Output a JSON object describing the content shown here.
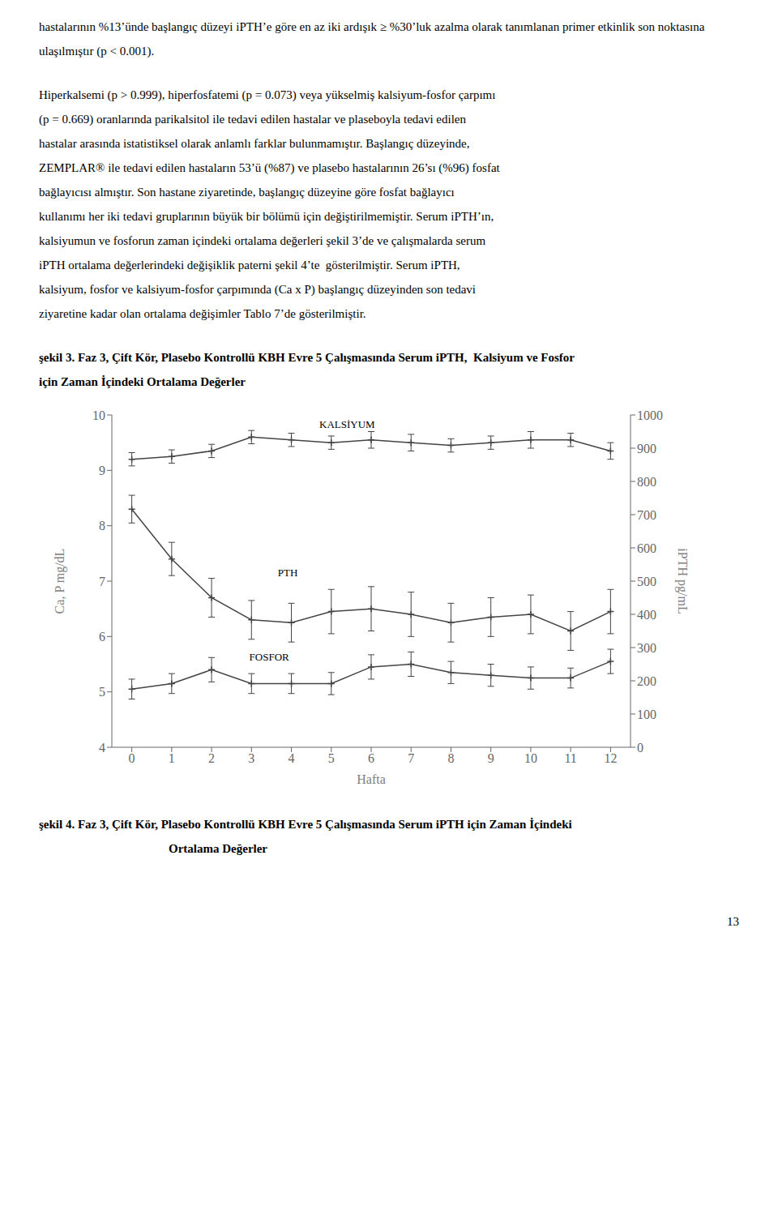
{
  "page_text": [
    "hastalarının %13’ünde başlangıç düzeyi iPTH’e göre en az iki ardışık ≥ %30’luk azalma olarak tanımlanan primer etkinlik son noktasına ulaşılmıştır (p < 0.001).",
    "Hiperkalsemi (p > 0.999), hiperfosfatemi (p = 0.073) veya yükselmiş kalsiyum-fosfor çarpımı",
    "(p = 0.669) oranlarında parikalsitol ile tedavi edilen hastalar ve plaseboyla tedavi edilen",
    "hastalar arasında istatistiksel olarak anlamlı farklar bulunmamıştır. Başlangıç düzeyinde,",
    "ZEMPLAR® ile tedavi edilen hastaların 53’ü (%87) ve plasebo hastalarının 26’sı (%96) fosfat",
    "bağlayıcısı almıştır. Son hastane ziyaretinde, başlangıç düzeyine göre fosfat bağlayıcı",
    "kullanımı her iki tedavi gruplarının büyük bir bölümü için değiştirilmemiştir. Serum iPTH’ın,",
    "kalsiyumun ve fosforun zaman içindeki ortalama değerleri şekil 3’de ve çalışmalarda serum",
    "iPTH ortalama değerlerindeki değişiklik paterni şekil 4’te  gösterilmiştir. Serum iPTH,",
    "kalsiyum, fosfor ve kalsiyum-fosfor çarpımında (Ca x P) başlangıç düzeyinden son tedavi",
    "ziyaretine kadar olan ortalama değişimler Tablo 7’de gösterilmiştir."
  ],
  "chart_data": {
    "type": "line",
    "title": [
      "şekil 3. Faz 3, Çift Kör, Plasebo Kontrollü KBH Evre 5 Çalışmasında Serum iPTH,  Kalsiyum ve Fosfor",
      "için Zaman İçindeki Ortalama Değerler"
    ],
    "x_label": "Hafta",
    "y_label": "Ca, P mg/dL",
    "y2_label": "iPTH pg/mL",
    "x": [
      0,
      1,
      2,
      3,
      4,
      5,
      6,
      7,
      8,
      9,
      10,
      11,
      12
    ],
    "xlim": [
      -0.5,
      12.5
    ],
    "xticks": [
      0,
      1,
      2,
      3,
      4,
      5,
      6,
      7,
      8,
      9,
      10,
      11,
      12
    ],
    "ylim": [
      4,
      10
    ],
    "yticks": [
      4,
      5,
      6,
      7,
      8,
      9,
      10
    ],
    "y2lim": [
      0,
      1000
    ],
    "y2ticks": [
      0,
      100,
      200,
      300,
      400,
      500,
      600,
      700,
      800,
      900,
      1000
    ],
    "grid": false,
    "series": [
      {
        "name": "KALSİYUM",
        "color": "#444444",
        "marker": "plus",
        "values": [
          9.2,
          9.25,
          9.35,
          9.6,
          9.55,
          9.5,
          9.55,
          9.5,
          9.45,
          9.5,
          9.55,
          9.55,
          9.35
        ],
        "errors": [
          0.12,
          0.12,
          0.12,
          0.12,
          0.12,
          0.12,
          0.15,
          0.15,
          0.12,
          0.12,
          0.15,
          0.12,
          0.15
        ]
      },
      {
        "name": "PTH",
        "color": "#444444",
        "marker": "plus",
        "values": [
          8.3,
          7.4,
          6.7,
          6.3,
          6.25,
          6.45,
          6.5,
          6.4,
          6.25,
          6.35,
          6.4,
          6.1,
          6.45
        ],
        "errors": [
          0.25,
          0.3,
          0.35,
          0.35,
          0.35,
          0.4,
          0.4,
          0.4,
          0.35,
          0.35,
          0.35,
          0.35,
          0.4
        ]
      },
      {
        "name": "FOSFOR",
        "color": "#444444",
        "marker": "plus",
        "values": [
          5.05,
          5.15,
          5.4,
          5.15,
          5.15,
          5.15,
          5.45,
          5.5,
          5.35,
          5.3,
          5.25,
          5.25,
          5.55
        ],
        "errors": [
          0.18,
          0.18,
          0.22,
          0.18,
          0.18,
          0.2,
          0.22,
          0.22,
          0.2,
          0.2,
          0.2,
          0.18,
          0.22
        ]
      }
    ]
  },
  "caption_after": [
    "şekil 4. Faz 3, Çift Kör, Plasebo Kontrollü KBH Evre 5 Çalışmasında Serum iPTH için Zaman İçindeki",
    "Ortalama Değerler"
  ],
  "page_number": "13"
}
